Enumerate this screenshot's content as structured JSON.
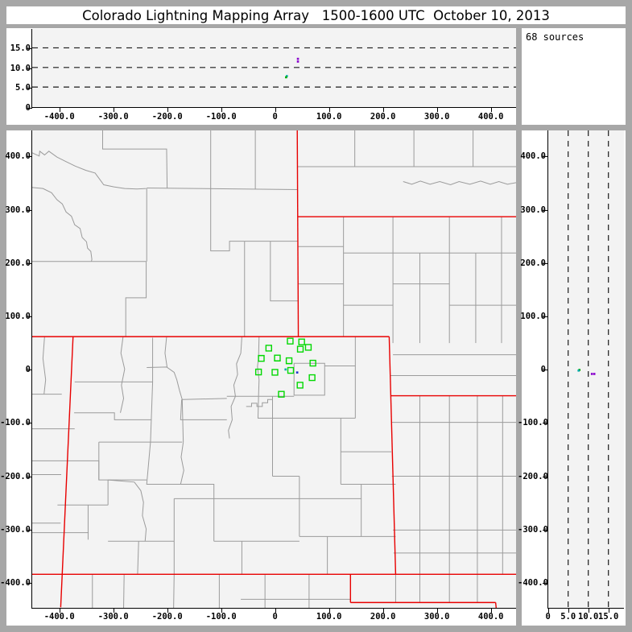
{
  "window": {
    "title": "Colorado Lightning Mapping Array   1500-1600 UTC  October 10, 2013",
    "frame_color": "#a7a7a7",
    "plot_bg": "#f3f3f3"
  },
  "annotation": {
    "source_count": "68 sources"
  },
  "palette": {
    "purple": "#8800cc",
    "blue": "#2233cc",
    "cyan": "#00aaaa",
    "green": "#00aa00",
    "station_green": "#00d800",
    "county_gray": "#9b9b9b",
    "state_red": "#e80000"
  },
  "chart_data": {
    "type": "scatter",
    "title": "Colorado Lightning Mapping Array   1500-1600 UTC  October 10, 2013",
    "source_count": 68,
    "axes": {
      "ew_ticks": [
        {
          "km": -400,
          "label": "-400.0"
        },
        {
          "km": -300,
          "label": "-300.0"
        },
        {
          "km": -200,
          "label": "-200.0"
        },
        {
          "km": -100,
          "label": "-100.0"
        },
        {
          "km": 0,
          "label": "0"
        },
        {
          "km": 100,
          "label": "100.0"
        },
        {
          "km": 200,
          "label": "200.0"
        },
        {
          "km": 300,
          "label": "300.0"
        },
        {
          "km": 400,
          "label": "400.0"
        }
      ],
      "ns_ticks": [
        {
          "km": 400,
          "label": "400.0"
        },
        {
          "km": 300,
          "label": "300.0"
        },
        {
          "km": 200,
          "label": "200.0"
        },
        {
          "km": 100,
          "label": "100.0"
        },
        {
          "km": 0,
          "label": "0"
        },
        {
          "km": -100,
          "label": "-100.0"
        },
        {
          "km": -200,
          "label": "-200.0"
        },
        {
          "km": -300,
          "label": "-300.0"
        },
        {
          "km": -400,
          "label": "-400.0"
        }
      ],
      "alt_ticks": [
        {
          "km": 0,
          "label": "0"
        },
        {
          "km": 5,
          "label": "5.0"
        },
        {
          "km": 10,
          "label": "10.0"
        },
        {
          "km": 15,
          "label": "15.0"
        }
      ],
      "ew_range_km": [
        -450,
        448
      ],
      "ns_range_km": [
        -447,
        449
      ],
      "alt_range_km": [
        0,
        19
      ]
    },
    "panels": [
      {
        "id": "alt-vs-ew",
        "x_axis": "ew",
        "y_axis": "alt",
        "alt_gridlines": [
          5,
          10,
          15
        ],
        "points": [
          {
            "x": 42.3,
            "alt": 12.2,
            "c": "purple"
          },
          {
            "x": 42.3,
            "alt": 11.5,
            "c": "purple"
          },
          {
            "x": 21.8,
            "alt": 7.8,
            "c": "cyan"
          },
          {
            "x": 20.4,
            "alt": 7.5,
            "c": "green"
          }
        ]
      },
      {
        "id": "plan-view",
        "x_axis": "ew",
        "y_axis": "ns",
        "stations_km": [
          [
            29.9,
            52.6
          ],
          [
            51.2,
            51.1
          ],
          [
            -10.0,
            39.4
          ],
          [
            48.7,
            37.5
          ],
          [
            63.6,
            40.9
          ],
          [
            -23.9,
            20.2
          ],
          [
            6.0,
            20.8
          ],
          [
            27.8,
            15.7
          ],
          [
            72.1,
            11.2
          ],
          [
            -29.0,
            -5.4
          ],
          [
            1.5,
            -5.9
          ],
          [
            30.7,
            -2.4
          ],
          [
            70.6,
            -16.0
          ],
          [
            48.2,
            -30.1
          ],
          [
            13.4,
            -47.1
          ]
        ],
        "points": [
          {
            "x": 21.3,
            "y": -0.6,
            "c": "cyan"
          },
          {
            "x": 42.9,
            "y": -6.3,
            "c": "blue"
          }
        ]
      },
      {
        "id": "alt-vs-ns",
        "x_axis": "alt",
        "y_axis": "ns",
        "alt_gridlines": [
          5,
          10,
          15
        ],
        "points": [
          {
            "alt": 7.8,
            "y": -0.6,
            "c": "green"
          },
          {
            "alt": 7.6,
            "y": -1.8,
            "c": "cyan"
          },
          {
            "alt": 10.9,
            "y": -8.1,
            "c": "purple"
          },
          {
            "alt": 11.5,
            "y": -8.1,
            "c": "purple"
          }
        ]
      }
    ]
  },
  "map": {
    "state_paths": [
      "M -450,-61 L 214,-61",
      "M -374,-61 L -397,447",
      "M 214,-61 L 226,385",
      "M -450,385 L 450,385",
      "M 45,-61 L 43,-450",
      "M 44,-286 L 450,-286",
      "M 217,50 L 450,50",
      "M 142,385 L 142,438",
      "M 142,438 L 412,438",
      "M 412,438 L 413,448"
    ],
    "county_paths": [
      "M -450,-406 L -437,-400 L -436,-409 L -427,-402 L -419,-409 L -404,-398 L -388,-390 L -370,-381 L -350,-373 L -333,-368 L -325,-357 L -317,-346 L -298,-342 L -278,-339 L -255,-338 L -238,-339",
      "M -450,-341 L -430,-339 L -414,-331 L -404,-318 L -394,-310 L -387,-295 L -377,-287 L -371,-271 L -361,-264 L -357,-247 L -349,-239 L -347,-227 L -341,-221 L -339,-206 L -340,-202",
      "M -450,-202 L -238,-202",
      "M -237,-339 L -237,-202",
      "M -238,-202 L -238,-134 L -276,-134 L -276,-61",
      "M -237,-340 L 44,-337",
      "M -118,-450 L -118,-222 L -83,-222 L -83,-240 L -55,-240",
      "M -55,-240 L -55,-61",
      "M -55,-240 L 44,-240",
      "M -7,-240 L -7,-128 L 44,-128",
      "M -35,-450 L -35,-338",
      "M -319,-450 L -319,-413 L -200,-413 L -199,-340",
      "M 150,-450 L 150,-380",
      "M 260,-450 L 260,-380",
      "M 370,-450 L 370,-380",
      "M 44,-380 L 450,-380",
      "M 240,-352 L 256,-347 L 272,-353 L 290,-347 L 308,-352 L 328,-346 L 344,-352 L 364,-347 L 384,-353 L 402,-347 L 418,-352 L 434,-347 L 450,-350",
      "M 129,-286 L 129,-61",
      "M 221,-286 L 221,-49",
      "M 326,-286 L 326,-49",
      "M 423,-286 L 423,-49",
      "M 44,-230 L 129,-230",
      "M 44,-160 L 129,-160",
      "M 129,-218 L 450,-218",
      "M 129,-120 L 221,-120",
      "M 221,-160 L 326,-160",
      "M 326,-120 L 450,-120",
      "M 221,-27 L 450,-27",
      "M 271,-218 L 271,-49",
      "M 375,-218 L 375,-49",
      "M 271,50 L 271,385",
      "M 326,50 L 326,385",
      "M 378,50 L 378,385",
      "M 425,50 L 425,385",
      "M 218,100 L 450,100",
      "M 219,201 L 450,201",
      "M 221,302 L 450,302",
      "M 222,345 L 450,345",
      "M 217,12 L 450,12",
      "M 151,-61 L 151,92",
      "M -3,92 L 151,92",
      "M 124,92 L 124,216",
      "M 124,155 L 218,155",
      "M 124,216 L 226,216",
      "M -3,51 L -3,201",
      "M -3,201 L 47,201",
      "M 47,201 L 47,314",
      "M 47,243 L 162,243",
      "M 162,216 L 162,314",
      "M 47,314 L 226,314",
      "M 99,314 L 99,385",
      "M 37,-11 L 94,-11 L 94,49 L 37,49 Z",
      "M 94,-6 L 151,-6",
      "M -28,51 L 37,51",
      "M -88,51 L -28,51",
      "M -28,-61 L -29,-20 L -31,-5 L -28,20 L -29,51 L -30,92 L -3,92",
      "M -60,-61 L -62,-30 L -70,-10 L -68,10 L -75,30 L -72,51 L -80,70 L -78,95 L -85,115 L -83,130",
      "M -171,57 L -88,55",
      "M -172,57 L -174,95 L -88,95",
      "M -237,-3 L -200,-4 L -186,6 L -181,20 L -176,40 L -171,57",
      "M -200,-61 L -203,-30 L -199,-3",
      "M -226,-59 L -226,24 L -230,137",
      "M -371,24 L -226,24",
      "M -281,-61 L -285,-30 L -278,0 L -284,30 L -280,55 L -286,82",
      "M -372,82 L -297,82 L -297,95 L -228,95",
      "M -326,137 L -171,137",
      "M -171,57 L -169,137",
      "M -326,137 L -326,208 L -237,208",
      "M -169,137 L -173,165 L -168,190 L -174,216",
      "M -230,137 L -237,216 L -174,216",
      "M -174,216 L -112,216 L -112,323",
      "M -309,208 L -309,255",
      "M -403,255 L -309,255",
      "M -450,307 L -345,307",
      "M -346,255 L -346,320",
      "M -309,323 L -186,323",
      "M -450,172 L -326,172 L -326,208",
      "M -450,112 L -371,112",
      "M -186,243 L -186,385",
      "M -186,243 L 47,243",
      "M -309,208 L -260,212 L -248,228 L -243,250 L -245,275 L -238,300 L -240,323",
      "M -252,323 L -254,385",
      "M -60,323 L -60,385",
      "M -112,323 L 47,323",
      "M -52,70 L -42,70 L -42,64 L -32,64 L -32,70 L -22,70 L -22,63 L -12,63 L -12,57 L -3,57",
      "M -450,47 L -395,47",
      "M -450,198 L -396,198",
      "M -450,289 L -397,289",
      "M -427,-61 L -430,-20 L -425,20 L -428,47",
      "M -338,385 L -338,450",
      "M -279,385 L -280,450",
      "M -186,385 L -187,450",
      "M -102,385 L -102,450",
      "M -17,385 L -17,450",
      "M 65,385 L 65,450",
      "M -62,432 L 142,432",
      "M 226,385 L 226,438",
      "M 271,385 L 271,438 M 326,385 L 326,438 M 378,385 L 378,438"
    ]
  }
}
